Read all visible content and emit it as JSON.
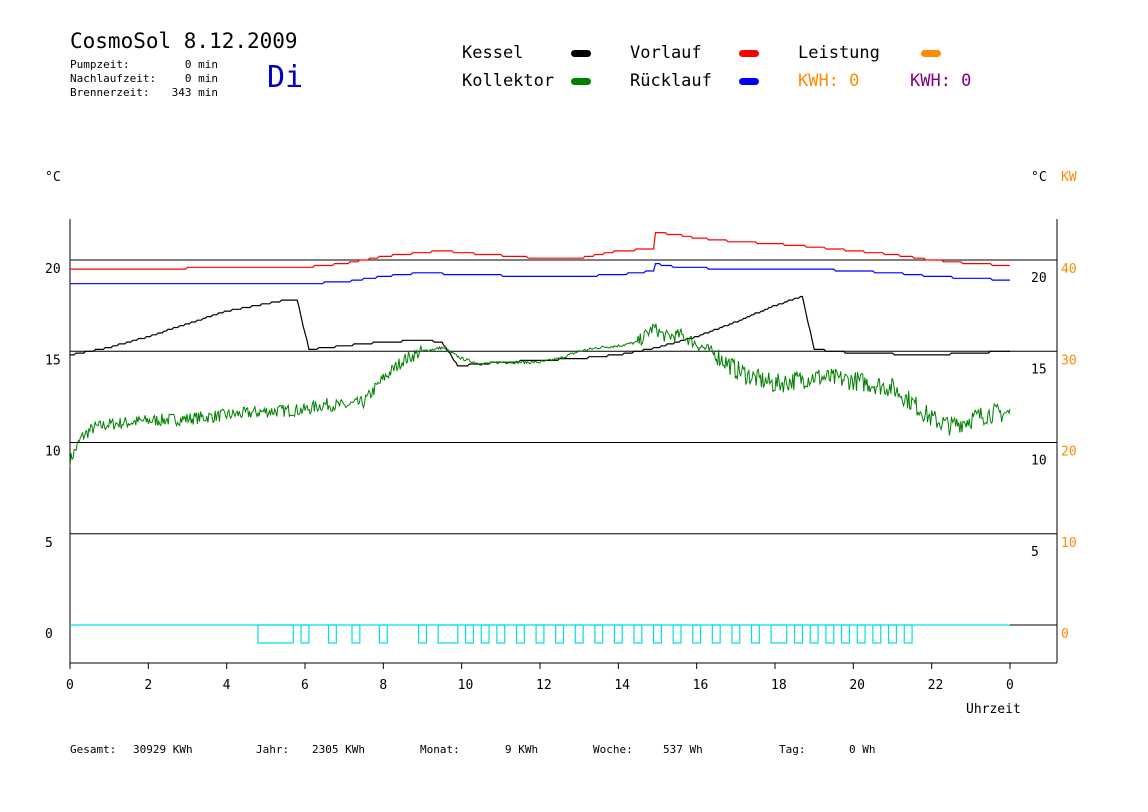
{
  "header": {
    "title": "CosmoSol 8.12.2009",
    "day": "Di",
    "stats": [
      {
        "label": "Pumpzeit:",
        "value": "0 min"
      },
      {
        "label": "Nachlaufzeit:",
        "value": "0 min"
      },
      {
        "label": "Brennerzeit:",
        "value": "343 min"
      }
    ]
  },
  "legend": {
    "kessel": {
      "label": "Kessel",
      "color": "#000000"
    },
    "kollektor": {
      "label": "Kollektor",
      "color": "#008000"
    },
    "vorlauf": {
      "label": "Vorlauf",
      "color": "#ff0000"
    },
    "ruecklauf": {
      "label": "Rücklauf",
      "color": "#0000ff"
    },
    "leistung": {
      "label": "Leistung",
      "color": "#ff8c00"
    },
    "kwh_orange": "KWH: 0",
    "kwh_purple": "KWH: 0",
    "orange_color": "#ff8c00",
    "purple_color": "#800080"
  },
  "axes": {
    "left_unit": "°C",
    "right_unit": "°C",
    "right_unit2": "KW",
    "xlabel": "Uhrzeit"
  },
  "footer": {
    "gesamt_label": "Gesamt:",
    "gesamt_value": "30929 KWh",
    "jahr_label": "Jahr:",
    "jahr_value": "2305 KWh",
    "monat_label": "Monat:",
    "monat_value": "9 KWh",
    "woche_label": "Woche:",
    "woche_value": "537 Wh",
    "tag_label": "Tag:",
    "tag_value": "0 Wh"
  },
  "chart_data": {
    "type": "line",
    "xlabel": "Uhrzeit",
    "ylabel": "°C",
    "xlim": [
      0,
      24
    ],
    "ylim": [
      -2,
      22.5
    ],
    "x_ticks": [
      "0",
      "2",
      "4",
      "6",
      "8",
      "10",
      "12",
      "14",
      "16",
      "18",
      "20",
      "22",
      "0"
    ],
    "y_ticks_left": [
      "20",
      "15",
      "10",
      "5",
      "0"
    ],
    "y_ticks_right": [
      "20",
      "15",
      "10",
      "5"
    ],
    "y_ticks_right_kw": [
      "40",
      "30",
      "20",
      "10",
      "0"
    ],
    "grid_y": [
      0,
      5,
      10,
      15,
      20
    ],
    "series": [
      {
        "name": "Vorlauf",
        "color": "#ff0000",
        "points": [
          [
            0,
            19.5
          ],
          [
            2,
            19.5
          ],
          [
            4,
            19.6
          ],
          [
            6,
            19.6
          ],
          [
            7,
            19.8
          ],
          [
            8,
            20.2
          ],
          [
            9.5,
            20.5
          ],
          [
            10,
            20.4
          ],
          [
            12,
            20.1
          ],
          [
            13,
            20.1
          ],
          [
            14,
            20.5
          ],
          [
            14.9,
            20.6
          ],
          [
            14.9,
            21.5
          ],
          [
            15.5,
            21.4
          ],
          [
            16,
            21.2
          ],
          [
            17,
            21.0
          ],
          [
            18,
            20.9
          ],
          [
            19,
            20.7
          ],
          [
            20,
            20.5
          ],
          [
            21,
            20.3
          ],
          [
            22,
            20.0
          ],
          [
            23,
            19.8
          ],
          [
            24,
            19.7
          ]
        ]
      },
      {
        "name": "Rücklauf",
        "color": "#0000ff",
        "points": [
          [
            0,
            18.7
          ],
          [
            2,
            18.7
          ],
          [
            4,
            18.7
          ],
          [
            6,
            18.7
          ],
          [
            7,
            18.8
          ],
          [
            8,
            19.1
          ],
          [
            9,
            19.3
          ],
          [
            10,
            19.2
          ],
          [
            12,
            19.1
          ],
          [
            13,
            19.1
          ],
          [
            14,
            19.2
          ],
          [
            14.9,
            19.4
          ],
          [
            14.9,
            19.8
          ],
          [
            15.5,
            19.6
          ],
          [
            17,
            19.5
          ],
          [
            19,
            19.5
          ],
          [
            21,
            19.3
          ],
          [
            22,
            19.1
          ],
          [
            23,
            19.0
          ],
          [
            24,
            18.9
          ]
        ]
      },
      {
        "name": "Kessel",
        "color": "#000000",
        "points": [
          [
            0,
            14.8
          ],
          [
            1,
            15.2
          ],
          [
            2,
            15.8
          ],
          [
            3,
            16.5
          ],
          [
            4,
            17.2
          ],
          [
            5,
            17.6
          ],
          [
            5.5,
            17.8
          ],
          [
            5.8,
            17.8
          ],
          [
            6.1,
            15.1
          ],
          [
            7,
            15.3
          ],
          [
            8,
            15.5
          ],
          [
            9,
            15.6
          ],
          [
            9.5,
            15.5
          ],
          [
            9.9,
            14.2
          ],
          [
            11,
            14.4
          ],
          [
            12,
            14.5
          ],
          [
            13,
            14.6
          ],
          [
            14,
            14.8
          ],
          [
            15,
            15.2
          ],
          [
            16,
            15.8
          ],
          [
            17,
            16.6
          ],
          [
            18,
            17.5
          ],
          [
            18.7,
            18.0
          ],
          [
            19.0,
            15.1
          ],
          [
            20,
            14.9
          ],
          [
            22,
            14.8
          ],
          [
            23,
            14.9
          ],
          [
            24,
            15.0
          ]
        ]
      },
      {
        "name": "Kollektor",
        "color": "#008000",
        "points": [
          [
            0,
            9.0
          ],
          [
            0.3,
            10.3
          ],
          [
            0.6,
            10.8
          ],
          [
            1,
            11.0
          ],
          [
            2,
            11.2
          ],
          [
            3,
            11.3
          ],
          [
            4,
            11.5
          ],
          [
            5,
            11.7
          ],
          [
            6,
            11.8
          ],
          [
            6.5,
            12.1
          ],
          [
            7,
            12.0
          ],
          [
            7.5,
            12.2
          ],
          [
            8,
            13.5
          ],
          [
            8.5,
            14.5
          ],
          [
            9,
            15.0
          ],
          [
            9.5,
            15.2
          ],
          [
            10,
            14.6
          ],
          [
            10.5,
            14.3
          ],
          [
            11,
            14.4
          ],
          [
            12,
            14.4
          ],
          [
            12.5,
            14.6
          ],
          [
            13,
            15.0
          ],
          [
            13.5,
            15.2
          ],
          [
            14,
            15.3
          ],
          [
            14.5,
            15.5
          ],
          [
            14.9,
            16.3
          ],
          [
            15.2,
            15.8
          ],
          [
            15.6,
            15.9
          ],
          [
            16,
            15.4
          ],
          [
            16.5,
            14.8
          ],
          [
            17,
            14.0
          ],
          [
            17.5,
            13.5
          ],
          [
            18,
            13.2
          ],
          [
            19,
            13.6
          ],
          [
            20,
            13.4
          ],
          [
            21,
            13.0
          ],
          [
            21.5,
            12.2
          ],
          [
            22,
            11.3
          ],
          [
            22.5,
            10.9
          ],
          [
            23,
            11.3
          ],
          [
            23.5,
            11.6
          ],
          [
            24,
            11.6
          ]
        ]
      }
    ],
    "pump_on_intervals": [
      [
        4.8,
        5.7
      ],
      [
        5.9,
        6.1
      ],
      [
        6.6,
        6.8
      ],
      [
        7.2,
        7.4
      ],
      [
        7.9,
        8.1
      ],
      [
        8.9,
        9.1
      ],
      [
        9.4,
        9.9
      ],
      [
        10.1,
        10.3
      ],
      [
        10.5,
        10.7
      ],
      [
        10.9,
        11.1
      ],
      [
        11.4,
        11.6
      ],
      [
        11.9,
        12.1
      ],
      [
        12.4,
        12.6
      ],
      [
        12.9,
        13.1
      ],
      [
        13.4,
        13.6
      ],
      [
        13.9,
        14.1
      ],
      [
        14.4,
        14.6
      ],
      [
        14.9,
        15.1
      ],
      [
        15.4,
        15.6
      ],
      [
        15.9,
        16.1
      ],
      [
        16.4,
        16.6
      ],
      [
        16.9,
        17.1
      ],
      [
        17.4,
        17.6
      ],
      [
        17.9,
        18.3
      ],
      [
        18.5,
        18.7
      ],
      [
        18.9,
        19.1
      ],
      [
        19.3,
        19.5
      ],
      [
        19.7,
        19.9
      ],
      [
        20.1,
        20.3
      ],
      [
        20.5,
        20.7
      ],
      [
        20.9,
        21.1
      ],
      [
        21.3,
        21.5
      ]
    ],
    "legend_position": "top"
  }
}
